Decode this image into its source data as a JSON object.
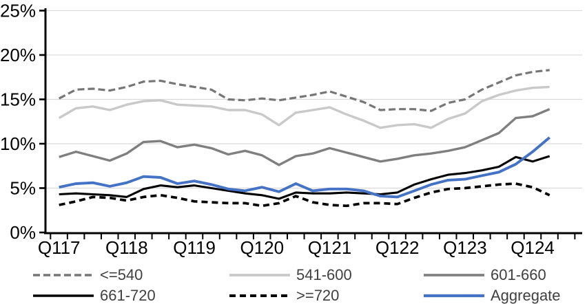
{
  "chart_data": {
    "type": "line",
    "title": "",
    "grid": true,
    "legend_position": "bottom",
    "x_axis": {
      "tick_labels": [
        "Q117",
        "Q118",
        "Q119",
        "Q120",
        "Q121",
        "Q122",
        "Q123",
        "Q124"
      ],
      "minor_tick_unit": "quarter"
    },
    "y_axis": {
      "min": 0,
      "max": 25,
      "step": 5,
      "unit": "%",
      "tick_labels": [
        "0%",
        "5%",
        "10%",
        "15%",
        "20%",
        "25%"
      ]
    },
    "categories": [
      "Q117",
      "Q217",
      "Q317",
      "Q417",
      "Q118",
      "Q218",
      "Q318",
      "Q418",
      "Q119",
      "Q219",
      "Q319",
      "Q419",
      "Q120",
      "Q220",
      "Q320",
      "Q420",
      "Q121",
      "Q221",
      "Q321",
      "Q421",
      "Q122",
      "Q222",
      "Q322",
      "Q422",
      "Q123",
      "Q223",
      "Q323",
      "Q423",
      "Q124",
      "Q224"
    ],
    "series": [
      {
        "name": "<=540",
        "color": "#767676",
        "line_style": "dashed",
        "values": [
          15.1,
          16.1,
          16.2,
          16.0,
          16.4,
          17.0,
          17.1,
          16.7,
          16.4,
          16.1,
          15.0,
          14.9,
          15.1,
          14.9,
          15.2,
          15.5,
          15.9,
          15.3,
          14.7,
          13.8,
          13.9,
          13.9,
          13.7,
          14.6,
          15.0,
          16.1,
          16.9,
          17.7,
          18.1,
          18.3
        ]
      },
      {
        "name": "541-600",
        "color": "#C9C9C9",
        "line_style": "solid",
        "values": [
          12.9,
          14.0,
          14.2,
          13.8,
          14.4,
          14.8,
          14.9,
          14.4,
          14.3,
          14.2,
          13.8,
          13.8,
          13.3,
          12.1,
          13.5,
          13.8,
          14.1,
          13.3,
          12.6,
          11.8,
          12.1,
          12.2,
          11.8,
          12.8,
          13.4,
          14.8,
          15.5,
          16.0,
          16.3,
          16.4
        ]
      },
      {
        "name": "601-660",
        "color": "#7F7F7F",
        "line_style": "solid",
        "values": [
          8.5,
          9.1,
          8.6,
          8.1,
          8.9,
          10.2,
          10.3,
          9.6,
          9.9,
          9.5,
          8.8,
          9.2,
          8.7,
          7.6,
          8.6,
          8.9,
          9.5,
          9.0,
          8.5,
          8.0,
          8.3,
          8.7,
          8.9,
          9.2,
          9.6,
          10.4,
          11.2,
          12.9,
          13.1,
          13.9
        ]
      },
      {
        "name": "661-720",
        "color": "#000000",
        "line_style": "solid",
        "values": [
          4.3,
          4.4,
          4.3,
          4.2,
          4.0,
          4.9,
          5.3,
          5.1,
          5.3,
          5.0,
          4.7,
          4.4,
          4.2,
          3.8,
          4.5,
          4.4,
          4.4,
          4.5,
          4.4,
          4.3,
          4.5,
          5.4,
          6.0,
          6.5,
          6.7,
          7.0,
          7.4,
          8.5,
          8.0,
          8.6
        ]
      },
      {
        "name": ">=720",
        "color": "#000000",
        "line_style": "dashed",
        "values": [
          3.1,
          3.5,
          4.0,
          3.9,
          3.6,
          4.0,
          4.2,
          3.9,
          3.5,
          3.4,
          3.3,
          3.3,
          3.0,
          3.3,
          4.1,
          3.4,
          3.1,
          3.0,
          3.3,
          3.3,
          3.2,
          3.9,
          4.5,
          4.9,
          5.0,
          5.2,
          5.4,
          5.5,
          5.1,
          4.2
        ]
      },
      {
        "name": "Aggregate",
        "color": "#4472C4",
        "line_style": "solid",
        "values": [
          5.1,
          5.5,
          5.6,
          5.2,
          5.6,
          6.3,
          6.2,
          5.5,
          5.8,
          5.4,
          4.9,
          4.7,
          5.1,
          4.6,
          5.5,
          4.7,
          4.9,
          4.9,
          4.7,
          4.1,
          4.0,
          4.7,
          5.4,
          5.9,
          6.0,
          6.4,
          6.8,
          7.7,
          9.1,
          10.7
        ]
      }
    ],
    "legend_rows": [
      [
        0,
        1,
        2
      ],
      [
        3,
        4,
        5
      ]
    ],
    "colors": {
      "gridline": "#D9D9D9",
      "axis": "#000000",
      "legend_text": "#404040"
    }
  }
}
